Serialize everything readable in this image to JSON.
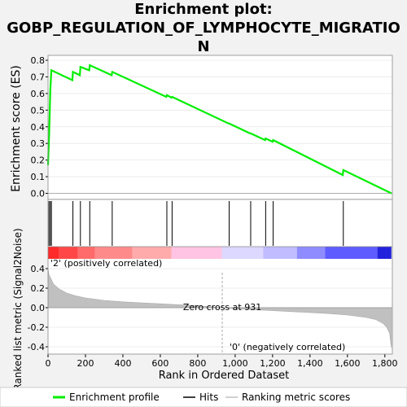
{
  "title_line1": "Enrichment plot:",
  "title_line2": "GOBP_REGULATION_OF_LYMPHOCYTE_MIGRATIO",
  "title_line3": "N",
  "chart_data": [
    {
      "type": "line",
      "ylabel": "Enrichment score (ES)",
      "ylim": [
        0,
        0.8
      ],
      "yticks": [
        "0.0",
        "0.1",
        "0.2",
        "0.3",
        "0.4",
        "0.5",
        "0.6",
        "0.7",
        "0.8"
      ],
      "series": [
        {
          "name": "Enrichment profile",
          "color": "#00ee00",
          "x": [
            0,
            6,
            12,
            18,
            130,
            133,
            170,
            173,
            220,
            223,
            340,
            343,
            632,
            635,
            660,
            663,
            965,
            968,
            1080,
            1083,
            1160,
            1163,
            1200,
            1203,
            1575,
            1578,
            1835
          ],
          "y": [
            0.17,
            0.36,
            0.62,
            0.74,
            0.68,
            0.73,
            0.71,
            0.76,
            0.74,
            0.77,
            0.71,
            0.73,
            0.58,
            0.59,
            0.575,
            0.58,
            0.42,
            0.42,
            0.36,
            0.36,
            0.32,
            0.33,
            0.31,
            0.32,
            0.11,
            0.14,
            0.0
          ]
        }
      ]
    },
    {
      "type": "hits",
      "series_name": "Hits",
      "hit_positions": [
        5,
        12,
        18,
        133,
        173,
        223,
        343,
        635,
        663,
        968,
        1083,
        1163,
        1203,
        1578
      ]
    },
    {
      "type": "area",
      "ylabel": "Ranked list metric (Signal2Noise)",
      "xlabel": "Rank in Ordered Dataset",
      "xlim": [
        0,
        1840
      ],
      "ylim": [
        -0.45,
        0.45
      ],
      "xticks": [
        "0",
        "200",
        "400",
        "600",
        "800",
        "1,000",
        "1,200",
        "1,400",
        "1,600",
        "1,800"
      ],
      "yticks": [
        "-0.4",
        "-0.2",
        "0.0",
        "0.2",
        "0.4"
      ],
      "series_name": "Ranking metric scores",
      "color": "#c0c0c0",
      "x": [
        0,
        5,
        15,
        30,
        60,
        100,
        150,
        200,
        300,
        400,
        500,
        600,
        700,
        800,
        931,
        1000,
        1100,
        1200,
        1300,
        1400,
        1500,
        1600,
        1700,
        1750,
        1790,
        1810,
        1825,
        1835
      ],
      "y": [
        0.4,
        0.34,
        0.3,
        0.24,
        0.19,
        0.15,
        0.12,
        0.1,
        0.075,
        0.06,
        0.05,
        0.04,
        0.03,
        0.02,
        0.0,
        -0.01,
        -0.02,
        -0.03,
        -0.04,
        -0.05,
        -0.06,
        -0.075,
        -0.1,
        -0.12,
        -0.16,
        -0.2,
        -0.26,
        -0.41
      ],
      "zero_cross_rank": 931,
      "annotations": {
        "zero_cross": "Zero cross at 931",
        "positive": "'2' (positively correlated)",
        "negative": "'0' (negatively correlated)"
      },
      "colors": {
        "positive_label": "#ff0000",
        "negative_label": "#0000ff"
      }
    }
  ],
  "legend": {
    "profile_label": "Enrichment profile",
    "hits_label": "Hits",
    "metric_label": "Ranking metric scores"
  }
}
